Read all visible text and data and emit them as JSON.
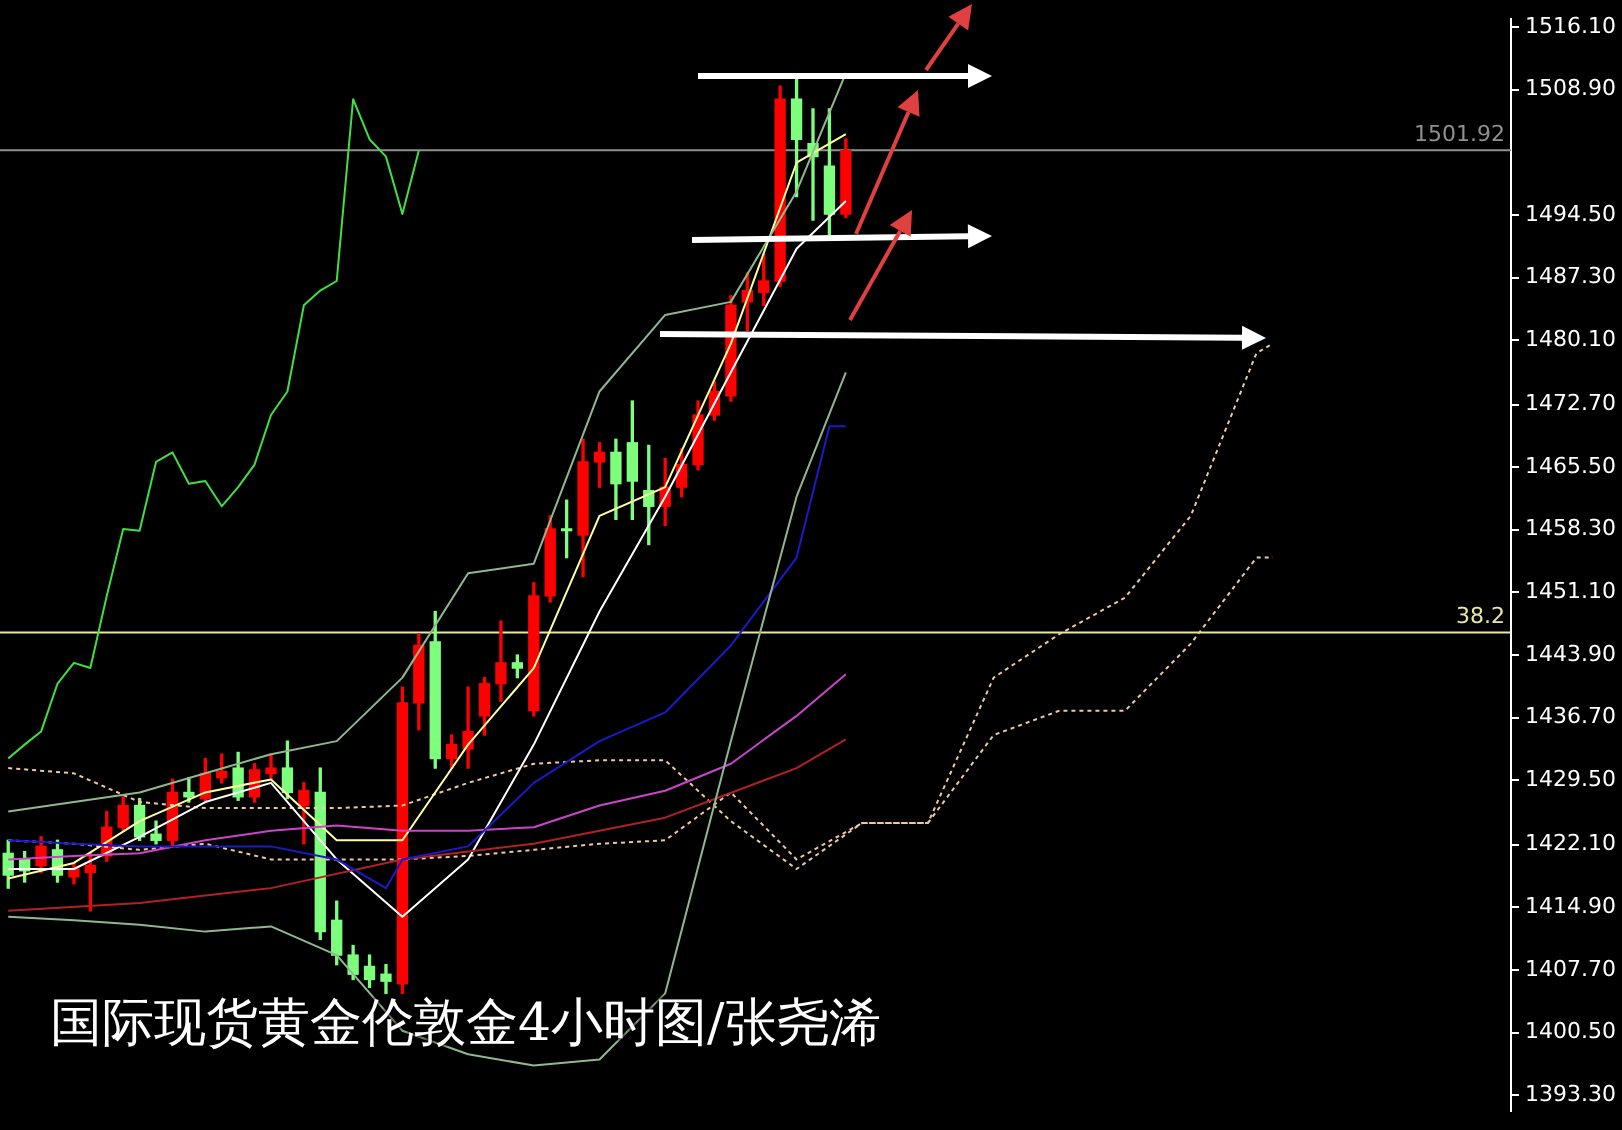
{
  "chart_data": {
    "type": "candlestick",
    "title": "国际现货黄金伦敦金4小时图/张尧浠",
    "categories": [
      null,
      null,
      null,
      null,
      null,
      null,
      null,
      null,
      null,
      null,
      null,
      null,
      null,
      null,
      null,
      null,
      null,
      null,
      null,
      null,
      null,
      null,
      null,
      null,
      null,
      null,
      null,
      null,
      null,
      null,
      null,
      null,
      null,
      null,
      null,
      null,
      null,
      null,
      null,
      null,
      null,
      null,
      null,
      null,
      null,
      null,
      null,
      null,
      null,
      null,
      null,
      null,
      null,
      null,
      null,
      null,
      null,
      null,
      null,
      null,
      null,
      null,
      null,
      null,
      null,
      null,
      null,
      null,
      null,
      null,
      null,
      null,
      null,
      null,
      null,
      null,
      null,
      null,
      null,
      null,
      null,
      null,
      null,
      null,
      null,
      null,
      null,
      null,
      null,
      null,
      null,
      null
    ],
    "ohlc": [
      [
        1421.1,
        1422.6,
        1417.1,
        1418.6
      ],
      [
        1420.4,
        1421.3,
        1417.8,
        1419.1
      ],
      [
        1419.7,
        1423.0,
        1418.9,
        1421.9
      ],
      [
        1421.5,
        1422.6,
        1417.8,
        1418.6
      ],
      [
        1418.4,
        1420.0,
        1417.6,
        1419.3
      ],
      [
        1418.9,
        1421.1,
        1414.5,
        1419.7
      ],
      [
        1420.8,
        1425.9,
        1420.2,
        1424.1
      ],
      [
        1424.1,
        1427.6,
        1423.7,
        1426.6
      ],
      [
        1426.6,
        1427.4,
        1422.6,
        1423.0
      ],
      [
        1423.3,
        1424.8,
        1422.2,
        1422.6
      ],
      [
        1422.6,
        1429.6,
        1421.9,
        1428.1
      ],
      [
        1428.1,
        1429.8,
        1427.0,
        1427.6
      ],
      [
        1427.4,
        1432.0,
        1427.0,
        1430.3
      ],
      [
        1429.8,
        1432.5,
        1429.2,
        1430.5
      ],
      [
        1430.9,
        1432.7,
        1427.2,
        1427.6
      ],
      [
        1427.6,
        1431.4,
        1427.0,
        1430.7
      ],
      [
        1430.3,
        1432.5,
        1429.6,
        1430.9
      ],
      [
        1430.9,
        1434.0,
        1427.4,
        1428.1
      ],
      [
        1426.6,
        1429.2,
        1422.2,
        1428.3
      ],
      [
        1428.1,
        1430.9,
        1411.2,
        1412.1
      ],
      [
        1413.4,
        1415.6,
        1408.3,
        1409.4
      ],
      [
        1409.4,
        1410.5,
        1406.6,
        1407.2
      ],
      [
        1408.1,
        1409.4,
        1405.7,
        1406.6
      ],
      [
        1407.2,
        1408.3,
        1405.0,
        1406.4
      ],
      [
        1406.1,
        1440.2,
        1405.0,
        1438.4
      ],
      [
        1438.4,
        1446.3,
        1435.3,
        1445.0
      ],
      [
        1445.4,
        1448.9,
        1430.9,
        1432.0
      ],
      [
        1432.0,
        1434.7,
        1430.9,
        1433.6
      ],
      [
        1433.1,
        1440.2,
        1430.9,
        1435.1
      ],
      [
        1436.9,
        1441.3,
        1434.7,
        1440.6
      ],
      [
        1440.6,
        1447.8,
        1438.6,
        1443.0
      ],
      [
        1443.0,
        1443.9,
        1441.3,
        1442.4
      ],
      [
        1437.5,
        1452.2,
        1436.9,
        1450.7
      ],
      [
        1450.7,
        1459.9,
        1450.0,
        1458.4
      ],
      [
        1458.4,
        1461.7,
        1455.1,
        1458.2
      ],
      [
        1457.7,
        1468.7,
        1452.9,
        1466.1
      ],
      [
        1466.1,
        1468.3,
        1463.2,
        1467.2
      ],
      [
        1467.2,
        1468.7,
        1459.5,
        1463.6
      ],
      [
        1468.3,
        1473.1,
        1459.5,
        1463.9
      ],
      [
        1462.8,
        1468.0,
        1456.6,
        1461.0
      ],
      [
        1461.0,
        1466.5,
        1458.8,
        1463.2
      ],
      [
        1463.2,
        1467.6,
        1462.1,
        1465.8
      ],
      [
        1465.8,
        1473.1,
        1465.2,
        1471.5
      ],
      [
        1471.5,
        1475.3,
        1470.9,
        1474.2
      ],
      [
        1473.7,
        1485.2,
        1473.1,
        1484.1
      ],
      [
        1484.5,
        1487.8,
        1481.2,
        1485.8
      ],
      [
        1485.6,
        1490.0,
        1484.1,
        1486.9
      ],
      [
        1486.9,
        1509.3,
        1486.3,
        1507.8
      ],
      [
        1507.8,
        1510.4,
        1496.6,
        1503.2
      ],
      [
        1502.7,
        1506.7,
        1493.9,
        1501.2
      ],
      [
        1500.1,
        1506.7,
        1491.7,
        1494.6
      ],
      [
        1494.6,
        1503.2,
        1494.2,
        1501.9
      ],
      null,
      null,
      null,
      null,
      null,
      null,
      null,
      null,
      null,
      null,
      null,
      null,
      null,
      null,
      null,
      null,
      null,
      null,
      null,
      null,
      null,
      null,
      null,
      null,
      null,
      null,
      null,
      null,
      null,
      null,
      null,
      null,
      null,
      null,
      null,
      null,
      null,
      null,
      null,
      null
    ],
    "colors": [
      "#7dff7d",
      "#7dff7d",
      "#ff0000",
      "#7dff7d",
      "#ff0000",
      "#ff0000",
      "#ff0000",
      "#ff0000",
      "#7dff7d",
      "#7dff7d",
      "#ff0000",
      "#7dff7d",
      "#ff0000",
      "#ff0000",
      "#7dff7d",
      "#ff0000",
      "#ff0000",
      "#7dff7d",
      "#ff0000",
      "#7dff7d",
      "#7dff7d",
      "#7dff7d",
      "#7dff7d",
      "#7dff7d",
      "#ff0000",
      "#ff0000",
      "#7dff7d",
      "#ff0000",
      "#ff0000",
      "#ff0000",
      "#ff0000",
      "#7dff7d",
      "#ff0000",
      "#ff0000",
      "#7dff7d",
      "#ff0000",
      "#ff0000",
      "#7dff7d",
      "#7dff7d",
      "#7dff7d",
      "#ff0000",
      "#ff0000",
      "#ff0000",
      "#ff0000",
      "#ff0000",
      "#ff0000",
      "#ff0000",
      "#ff0000",
      "#7dff7d",
      "#7dff7d",
      "#7dff7d",
      "#ff0000",
      null,
      null,
      null,
      null,
      null,
      null,
      null,
      null,
      null,
      null,
      null,
      null,
      null,
      null,
      null,
      null,
      null,
      null,
      null,
      null,
      null,
      null,
      null,
      null,
      null,
      null,
      null,
      null,
      null,
      null,
      null,
      null,
      null,
      null,
      null,
      null,
      null,
      null,
      null,
      null
    ],
    "series": [
      {
        "type": "line",
        "color": "#40e040",
        "values": [
          1432.0,
          1433.6,
          1435.1,
          1440.6,
          1443.0,
          1442.4,
          1450.7,
          1458.4,
          1458.2,
          1466.1,
          1467.2,
          1463.6,
          1463.9,
          1461.0,
          1463.2,
          1465.8,
          1471.5,
          1474.2,
          1484.1,
          1485.8,
          1486.9,
          1507.8,
          1503.2,
          1501.2,
          1494.6,
          1501.9,
          null,
          null,
          null,
          null,
          null,
          null,
          null,
          null,
          null,
          null,
          null,
          null,
          null,
          null,
          null,
          null,
          null,
          null,
          null,
          null,
          null,
          null,
          null,
          null,
          null,
          null,
          null,
          null,
          null,
          null,
          null,
          null,
          null,
          null,
          null,
          null,
          null,
          null,
          null,
          null,
          null,
          null,
          null,
          null,
          null,
          null,
          null,
          null,
          null,
          null,
          null,
          null,
          null,
          null,
          null,
          null,
          null,
          null,
          null,
          null,
          null,
          null,
          null,
          null,
          null,
          null
        ]
      },
      {
        "type": "line",
        "color": "#8fb88f",
        "values": [
          1425.9,
          null,
          null,
          null,
          1427.0,
          null,
          null,
          null,
          1428.1,
          null,
          null,
          null,
          1430.3,
          null,
          null,
          null,
          1432.5,
          null,
          null,
          null,
          1434.0,
          null,
          null,
          null,
          1441.3,
          null,
          null,
          null,
          1453.3,
          null,
          null,
          null,
          1454.4,
          null,
          null,
          null,
          1474.2,
          null,
          null,
          null,
          1483.0,
          null,
          null,
          null,
          1484.5,
          null,
          null,
          null,
          1497.2,
          null,
          null,
          1510.8,
          null,
          null,
          null,
          null,
          null,
          null,
          null,
          null,
          null,
          null,
          null,
          null,
          null,
          null,
          null,
          null,
          null,
          null,
          null,
          null,
          null,
          null,
          null,
          null,
          null,
          null,
          null,
          null,
          null,
          null,
          null,
          null,
          null,
          null,
          null,
          null,
          null,
          null,
          null,
          null
        ]
      },
      {
        "type": "line",
        "color": "#8fb88f",
        "values": [
          1413.8,
          null,
          null,
          null,
          1413.4,
          null,
          null,
          null,
          1412.9,
          null,
          null,
          null,
          1412.1,
          null,
          null,
          null,
          1412.7,
          null,
          null,
          null,
          1409.4,
          null,
          null,
          null,
          1400.7,
          null,
          null,
          null,
          1398.0,
          null,
          null,
          null,
          1396.7,
          null,
          null,
          null,
          1397.4,
          null,
          null,
          null,
          1405.0,
          null,
          null,
          null,
          1434.0,
          null,
          null,
          null,
          1462.1,
          null,
          null,
          1476.4,
          null,
          null,
          null,
          null,
          null,
          null,
          null,
          null,
          null,
          null,
          null,
          null,
          null,
          null,
          null,
          null,
          null,
          null,
          null,
          null,
          null,
          null,
          null,
          null,
          null,
          null,
          null,
          null,
          null,
          null,
          null,
          null,
          null,
          null,
          null,
          null,
          null,
          null,
          null,
          null
        ]
      },
      {
        "type": "line",
        "color": "#1a1acc",
        "values": [
          1422.6,
          null,
          null,
          null,
          1422.2,
          null,
          null,
          null,
          1421.9,
          null,
          null,
          null,
          1421.9,
          null,
          null,
          null,
          1421.9,
          null,
          null,
          null,
          1420.4,
          null,
          null,
          1417.1,
          1420.4,
          null,
          null,
          null,
          1421.9,
          null,
          null,
          null,
          1429.2,
          null,
          null,
          null,
          1434.0,
          null,
          null,
          null,
          1437.3,
          null,
          null,
          null,
          1445.0,
          null,
          null,
          null,
          1455.1,
          null,
          1470.2,
          1470.2,
          null,
          null,
          null,
          null,
          null,
          null,
          null,
          null,
          null,
          null,
          null,
          null,
          null,
          null,
          null,
          null,
          null,
          null,
          null,
          null,
          null,
          null,
          null,
          null,
          null,
          null,
          null,
          null,
          null,
          null,
          null,
          null,
          null,
          null,
          null,
          null,
          null,
          null,
          null,
          null
        ]
      },
      {
        "type": "line",
        "color": "#cc44cc",
        "values": [
          1420.4,
          null,
          null,
          null,
          1420.8,
          null,
          null,
          null,
          1421.1,
          null,
          null,
          null,
          1422.6,
          null,
          null,
          null,
          1423.7,
          null,
          null,
          null,
          1424.3,
          null,
          null,
          null,
          1423.7,
          null,
          null,
          null,
          1423.7,
          null,
          null,
          null,
          1424.1,
          null,
          null,
          null,
          1426.6,
          null,
          null,
          null,
          1428.3,
          null,
          null,
          null,
          1431.4,
          null,
          null,
          null,
          1436.9,
          null,
          null,
          1441.7,
          null,
          null,
          null,
          null,
          null,
          null,
          null,
          null,
          null,
          null,
          null,
          null,
          null,
          null,
          null,
          null,
          null,
          null,
          null,
          null,
          null,
          null,
          null,
          null,
          null,
          null,
          null,
          null,
          null,
          null,
          null,
          null,
          null,
          null,
          null,
          null,
          null,
          null,
          null,
          null
        ]
      },
      {
        "type": "line",
        "color": "#b22222",
        "values": [
          1414.5,
          null,
          null,
          null,
          null,
          null,
          null,
          null,
          1415.4,
          null,
          null,
          null,
          null,
          null,
          null,
          null,
          1417.1,
          null,
          null,
          null,
          null,
          null,
          null,
          null,
          1420.4,
          null,
          null,
          null,
          null,
          null,
          null,
          null,
          1422.2,
          null,
          null,
          null,
          null,
          null,
          null,
          null,
          1425.2,
          null,
          null,
          null,
          null,
          null,
          null,
          null,
          1430.9,
          null,
          null,
          1434.2,
          null,
          null,
          null,
          null,
          null,
          null,
          null,
          null,
          null,
          null,
          null,
          null,
          null,
          null,
          null,
          null,
          null,
          null,
          null,
          null,
          null,
          null,
          null,
          null,
          null,
          null,
          null,
          null,
          null,
          null,
          null,
          null,
          null,
          null,
          null,
          null,
          null,
          null,
          null,
          null
        ]
      },
      {
        "type": "line",
        "color": "#ffffff",
        "values": [
          1419.3,
          null,
          null,
          null,
          1419.3,
          null,
          null,
          null,
          1423.0,
          null,
          null,
          null,
          1427.0,
          null,
          null,
          null,
          1429.2,
          null,
          null,
          null,
          1420.4,
          null,
          null,
          null,
          1413.8,
          null,
          null,
          null,
          1420.4,
          null,
          null,
          null,
          1433.6,
          null,
          null,
          null,
          1448.9,
          null,
          null,
          null,
          1462.1,
          null,
          null,
          null,
          1476.4,
          null,
          null,
          null,
          1490.6,
          null,
          null,
          1496.1,
          null,
          null,
          null,
          null,
          null,
          null,
          null,
          null,
          null,
          null,
          null,
          null,
          null,
          null,
          null,
          null,
          null,
          null,
          null,
          null,
          null,
          null,
          null,
          null,
          null,
          null,
          null,
          null,
          null,
          null,
          null,
          null,
          null,
          null,
          null,
          null,
          null,
          null,
          null,
          null
        ]
      },
      {
        "type": "line",
        "color": "#ffffa0",
        "values": [
          1418.2,
          null,
          null,
          null,
          1420.0,
          null,
          null,
          null,
          1424.8,
          null,
          null,
          null,
          1428.1,
          null,
          null,
          null,
          1429.6,
          null,
          null,
          null,
          1422.6,
          null,
          null,
          null,
          1422.6,
          null,
          null,
          null,
          1433.6,
          null,
          null,
          null,
          1442.4,
          null,
          null,
          null,
          1459.9,
          null,
          null,
          null,
          1463.2,
          null,
          null,
          null,
          1479.7,
          null,
          null,
          null,
          1500.5,
          null,
          null,
          1503.8,
          null,
          null,
          null,
          null,
          null,
          null,
          null,
          null,
          null,
          null,
          null,
          null,
          null,
          null,
          null,
          null,
          null,
          null,
          null,
          null,
          null,
          null,
          null,
          null,
          null,
          null,
          null,
          null,
          null,
          null,
          null,
          null,
          null,
          null,
          null,
          null,
          null,
          null,
          null,
          null
        ]
      },
      {
        "type": "line",
        "color": "#f0c8a0",
        "line_style": "dashed",
        "values": [
          1430.9,
          null,
          null,
          null,
          1430.3,
          null,
          null,
          null,
          1427.0,
          null,
          null,
          null,
          1426.3,
          null,
          null,
          null,
          1426.3,
          null,
          null,
          null,
          1426.3,
          null,
          null,
          null,
          1426.6,
          null,
          null,
          null,
          1429.2,
          null,
          null,
          null,
          1431.4,
          null,
          null,
          null,
          1431.8,
          null,
          null,
          null,
          1431.8,
          null,
          null,
          null,
          1424.8,
          null,
          null,
          null,
          1419.3,
          null,
          null,
          null,
          1424.6,
          null,
          null,
          null,
          1424.6,
          null,
          null,
          null,
          1441.3,
          null,
          null,
          null,
          1446.3,
          null,
          null,
          null,
          1450.5,
          null,
          null,
          null,
          1459.9,
          null,
          null,
          null,
          1478.6,
          1479.7,
          null,
          null,
          null,
          null,
          null,
          null,
          null,
          null,
          null,
          null,
          null,
          null,
          null,
          null
        ]
      },
      {
        "type": "line",
        "color": "#f0c8a0",
        "line_style": "dashed",
        "values": [
          1422.6,
          null,
          null,
          null,
          1422.2,
          null,
          null,
          null,
          1421.5,
          null,
          null,
          null,
          1422.2,
          null,
          null,
          null,
          1420.4,
          null,
          null,
          null,
          1420.4,
          null,
          null,
          null,
          1420.4,
          null,
          null,
          null,
          1420.8,
          null,
          null,
          null,
          1421.5,
          null,
          null,
          null,
          1422.2,
          null,
          null,
          null,
          1422.6,
          null,
          null,
          null,
          1428.1,
          null,
          null,
          null,
          1420.4,
          null,
          null,
          null,
          1424.6,
          null,
          null,
          null,
          1424.6,
          null,
          null,
          null,
          1434.7,
          null,
          null,
          null,
          1437.5,
          null,
          null,
          null,
          1437.5,
          null,
          null,
          null,
          1445.2,
          null,
          null,
          null,
          1455.1,
          1455.1,
          null,
          null,
          null,
          null,
          null,
          null,
          null,
          null,
          null,
          null,
          null,
          null,
          null,
          null
        ]
      }
    ],
    "ylim": [
      1391.5,
      1517.0
    ],
    "yticks": [
      {
        "value": 1516.1,
        "label": "1516.10"
      },
      {
        "value": 1508.9,
        "label": "1508.90"
      },
      {
        "value": 1494.5,
        "label": "1494.50"
      },
      {
        "value": 1487.3,
        "label": "1487.30"
      },
      {
        "value": 1480.1,
        "label": "1480.10"
      },
      {
        "value": 1472.7,
        "label": "1472.70"
      },
      {
        "value": 1465.5,
        "label": "1465.50"
      },
      {
        "value": 1458.3,
        "label": "1458.30"
      },
      {
        "value": 1451.1,
        "label": "1451.10"
      },
      {
        "value": 1443.9,
        "label": "1443.90"
      },
      {
        "value": 1436.7,
        "label": "1436.70"
      },
      {
        "value": 1429.5,
        "label": "1429.50"
      },
      {
        "value": 1422.1,
        "label": "1422.10"
      },
      {
        "value": 1414.9,
        "label": "1414.90"
      },
      {
        "value": 1407.7,
        "label": "1407.70"
      },
      {
        "value": 1400.5,
        "label": "1400.50"
      },
      {
        "value": 1393.3,
        "label": "1393.30"
      }
    ],
    "ref_lines": [
      {
        "axis": "y",
        "value": 1501.92,
        "label": "1501.92",
        "color": "#909090"
      },
      {
        "axis": "y",
        "value": 1446.5,
        "color": "#e8e8a0"
      }
    ],
    "annotations": [
      {
        "text": "38.2",
        "y": 1446.5
      }
    ],
    "tick_labels": "y"
  }
}
